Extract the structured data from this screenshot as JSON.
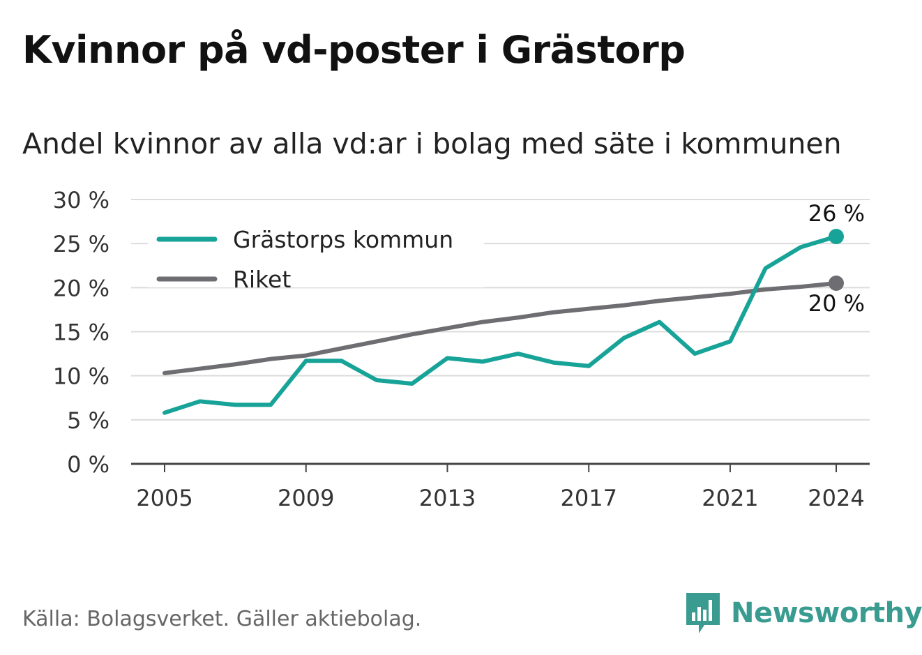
{
  "header": {
    "title": "Kvinnor på vd-poster i Grästorp",
    "subtitle": "Andel kvinnor av alla vd:ar i bolag med säte i kommunen"
  },
  "footer": {
    "source": "Källa: Bolagsverket. Gäller aktiebolag.",
    "brand": "Newsworthy",
    "brand_icon": "bar-chart-speech-bubble-icon",
    "brand_color": "#3a9b90"
  },
  "chart_data": {
    "type": "line",
    "x": [
      2005,
      2006,
      2007,
      2008,
      2009,
      2010,
      2011,
      2012,
      2013,
      2014,
      2015,
      2016,
      2017,
      2018,
      2019,
      2020,
      2021,
      2022,
      2023,
      2024
    ],
    "x_ticks": [
      "2005",
      "2009",
      "2013",
      "2017",
      "2021",
      "2024"
    ],
    "y_ticks": [
      "0 %",
      "5 %",
      "10 %",
      "15 %",
      "20 %",
      "25 %",
      "30 %"
    ],
    "ylim": [
      0,
      30
    ],
    "grid": "horizontal",
    "legend_position": "top-left",
    "series": [
      {
        "name": "Grästorps kommun",
        "color": "#17a398",
        "values": [
          5.8,
          7.1,
          6.7,
          6.7,
          11.7,
          11.7,
          9.5,
          9.1,
          12.0,
          11.6,
          12.5,
          11.5,
          11.1,
          14.3,
          16.1,
          12.5,
          13.9,
          22.2,
          24.6,
          25.8
        ],
        "end_label": "26 %"
      },
      {
        "name": "Riket",
        "color": "#6e6d72",
        "values": [
          10.3,
          10.8,
          11.3,
          11.9,
          12.3,
          13.1,
          13.9,
          14.7,
          15.4,
          16.1,
          16.6,
          17.2,
          17.6,
          18.0,
          18.5,
          18.9,
          19.3,
          19.8,
          20.1,
          20.5
        ],
        "end_label": "20 %"
      }
    ]
  }
}
